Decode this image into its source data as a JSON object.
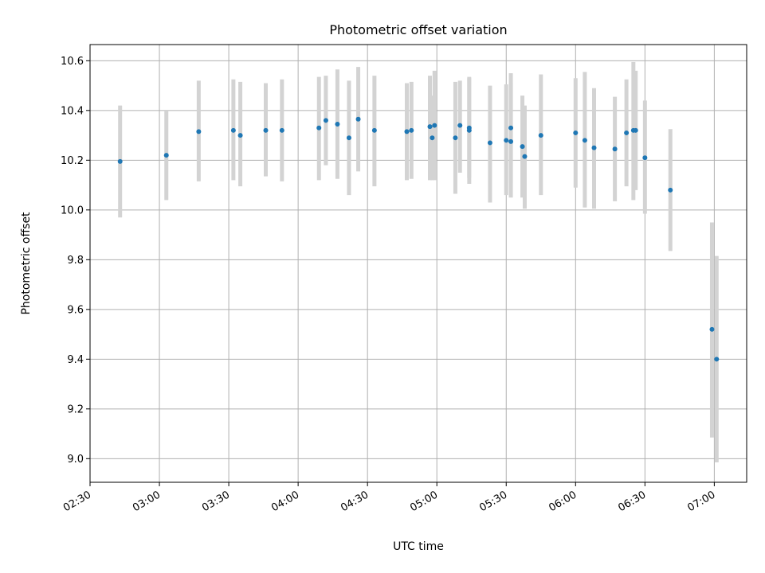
{
  "chart_data": {
    "type": "scatter",
    "title": "Photometric offset variation",
    "xlabel": "UTC time",
    "ylabel": "Photometric offset",
    "xlim": [
      "02:30",
      "07:14"
    ],
    "ylim": [
      8.905,
      10.665
    ],
    "grid": true,
    "legend": "none",
    "x_ticks": [
      "02:30",
      "03:00",
      "03:30",
      "04:00",
      "04:30",
      "05:00",
      "05:30",
      "06:00",
      "06:30",
      "07:00"
    ],
    "y_ticks": [
      "9.0",
      "9.2",
      "9.4",
      "9.6",
      "9.8",
      "10.0",
      "10.2",
      "10.4",
      "10.6"
    ],
    "point_color": "#1f77b4",
    "errorbar_color": "#d3d3d3",
    "points": [
      {
        "time": "02:43",
        "value": 10.195,
        "low": 9.97,
        "high": 10.42
      },
      {
        "time": "03:03",
        "value": 10.22,
        "low": 10.04,
        "high": 10.4
      },
      {
        "time": "03:17",
        "value": 10.315,
        "low": 10.115,
        "high": 10.52
      },
      {
        "time": "03:32",
        "value": 10.32,
        "low": 10.12,
        "high": 10.525
      },
      {
        "time": "03:35",
        "value": 10.3,
        "low": 10.095,
        "high": 10.515
      },
      {
        "time": "03:46",
        "value": 10.32,
        "low": 10.135,
        "high": 10.51
      },
      {
        "time": "03:53",
        "value": 10.32,
        "low": 10.115,
        "high": 10.525
      },
      {
        "time": "04:09",
        "value": 10.33,
        "low": 10.12,
        "high": 10.535
      },
      {
        "time": "04:12",
        "value": 10.36,
        "low": 10.18,
        "high": 10.54
      },
      {
        "time": "04:17",
        "value": 10.345,
        "low": 10.125,
        "high": 10.565
      },
      {
        "time": "04:22",
        "value": 10.29,
        "low": 10.06,
        "high": 10.52
      },
      {
        "time": "04:26",
        "value": 10.365,
        "low": 10.155,
        "high": 10.575
      },
      {
        "time": "04:33",
        "value": 10.32,
        "low": 10.095,
        "high": 10.54
      },
      {
        "time": "04:47",
        "value": 10.315,
        "low": 10.12,
        "high": 10.51
      },
      {
        "time": "04:49",
        "value": 10.32,
        "low": 10.125,
        "high": 10.515
      },
      {
        "time": "04:57",
        "value": 10.335,
        "low": 10.12,
        "high": 10.54
      },
      {
        "time": "04:58",
        "value": 10.29,
        "low": 10.12,
        "high": 10.46
      },
      {
        "time": "04:59",
        "value": 10.34,
        "low": 10.12,
        "high": 10.56
      },
      {
        "time": "05:08",
        "value": 10.29,
        "low": 10.065,
        "high": 10.515
      },
      {
        "time": "05:10",
        "value": 10.34,
        "low": 10.15,
        "high": 10.52
      },
      {
        "time": "05:14",
        "value": 10.33,
        "low": 10.13,
        "high": 10.53
      },
      {
        "time": "05:14",
        "value": 10.32,
        "low": 10.105,
        "high": 10.535
      },
      {
        "time": "05:23",
        "value": 10.27,
        "low": 10.03,
        "high": 10.5
      },
      {
        "time": "05:30",
        "value": 10.28,
        "low": 10.06,
        "high": 10.505
      },
      {
        "time": "05:32",
        "value": 10.275,
        "low": 10.05,
        "high": 10.51
      },
      {
        "time": "05:32",
        "value": 10.33,
        "low": 10.11,
        "high": 10.55
      },
      {
        "time": "05:37",
        "value": 10.255,
        "low": 10.05,
        "high": 10.46
      },
      {
        "time": "05:38",
        "value": 10.215,
        "low": 10.005,
        "high": 10.42
      },
      {
        "time": "05:45",
        "value": 10.3,
        "low": 10.06,
        "high": 10.545
      },
      {
        "time": "06:00",
        "value": 10.31,
        "low": 10.09,
        "high": 10.53
      },
      {
        "time": "06:04",
        "value": 10.28,
        "low": 10.01,
        "high": 10.555
      },
      {
        "time": "06:08",
        "value": 10.25,
        "low": 10.005,
        "high": 10.49
      },
      {
        "time": "06:17",
        "value": 10.245,
        "low": 10.035,
        "high": 10.455
      },
      {
        "time": "06:22",
        "value": 10.31,
        "low": 10.095,
        "high": 10.525
      },
      {
        "time": "06:25",
        "value": 10.32,
        "low": 10.04,
        "high": 10.595
      },
      {
        "time": "06:26",
        "value": 10.32,
        "low": 10.08,
        "high": 10.56
      },
      {
        "time": "06:30",
        "value": 10.21,
        "low": 9.985,
        "high": 10.44
      },
      {
        "time": "06:41",
        "value": 10.08,
        "low": 9.835,
        "high": 10.325
      },
      {
        "time": "06:59",
        "value": 9.52,
        "low": 9.085,
        "high": 9.95
      },
      {
        "time": "07:01",
        "value": 9.4,
        "low": 8.985,
        "high": 9.815
      }
    ]
  }
}
